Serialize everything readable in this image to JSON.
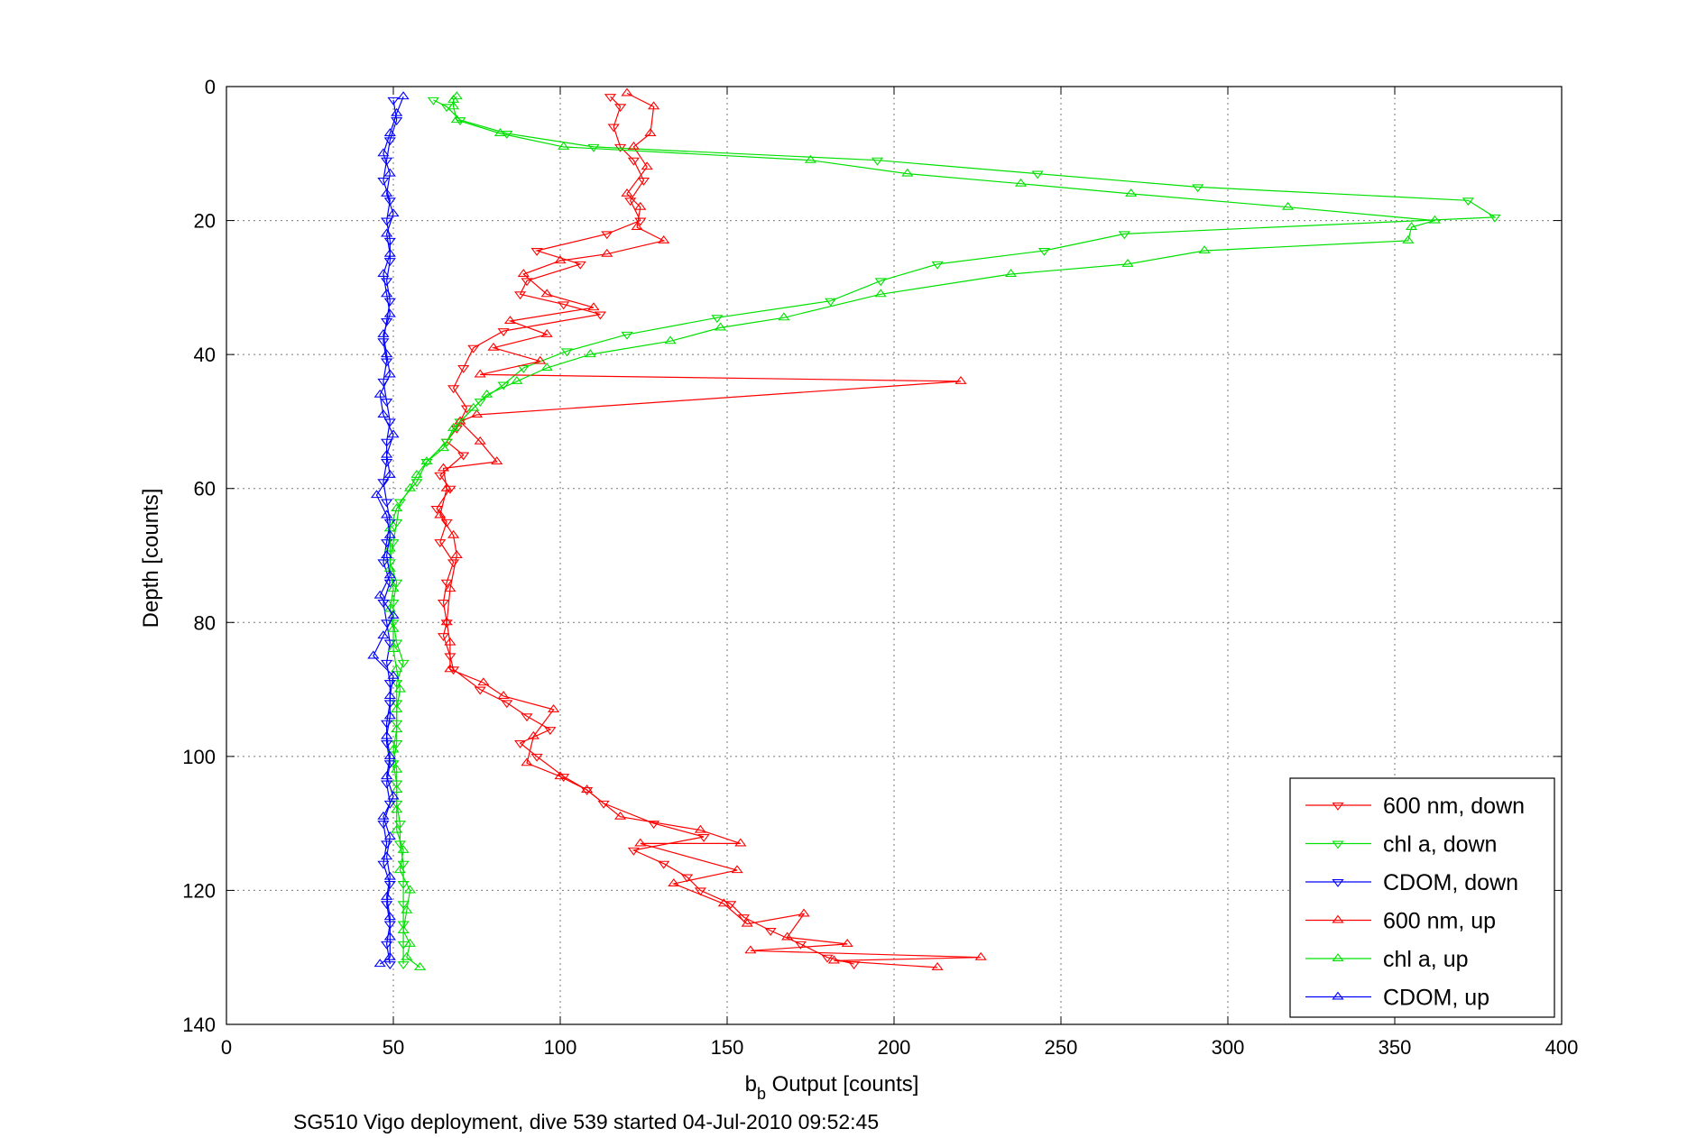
{
  "chart_data": {
    "type": "line",
    "title": "",
    "xlabel_main": "b",
    "xlabel_sub": "b",
    "xlabel_rest": " Output [counts]",
    "ylabel": "Depth [counts]",
    "footer": "SG510 Vigo deployment, dive 539 started 04-Jul-2010 09:52:45",
    "xlim": [
      0,
      400
    ],
    "ylim": [
      0,
      140
    ],
    "y_reversed": true,
    "xticks": [
      0,
      50,
      100,
      150,
      200,
      250,
      300,
      350,
      400
    ],
    "yticks": [
      0,
      20,
      40,
      60,
      80,
      100,
      120,
      140
    ],
    "xtick_labels": [
      "0",
      "50",
      "100",
      "150",
      "200",
      "250",
      "300",
      "350",
      "400"
    ],
    "ytick_labels": [
      "0",
      "20",
      "40",
      "60",
      "80",
      "100",
      "120",
      "140"
    ],
    "grid": true,
    "legend_position": "bottom-right",
    "series": [
      {
        "name": "600 nm, down",
        "color": "#ff0000",
        "marker": "triangle-down",
        "points": [
          [
            115,
            1.5
          ],
          [
            118,
            3
          ],
          [
            116,
            6
          ],
          [
            118,
            9
          ],
          [
            122,
            11
          ],
          [
            125,
            14
          ],
          [
            121,
            17
          ],
          [
            124,
            20
          ],
          [
            114,
            22
          ],
          [
            93,
            24.5
          ],
          [
            106,
            26.5
          ],
          [
            90,
            29
          ],
          [
            88,
            31
          ],
          [
            101,
            32.5
          ],
          [
            112,
            34
          ],
          [
            83,
            36.5
          ],
          [
            74,
            39
          ],
          [
            71,
            42
          ],
          [
            68,
            45
          ],
          [
            72,
            48
          ],
          [
            69,
            51
          ],
          [
            66,
            53
          ],
          [
            71,
            55
          ],
          [
            64,
            58
          ],
          [
            67,
            60
          ],
          [
            63,
            63
          ],
          [
            66,
            65
          ],
          [
            64,
            68
          ],
          [
            68,
            71
          ],
          [
            66,
            74
          ],
          [
            65,
            77
          ],
          [
            66,
            80
          ],
          [
            65,
            82
          ],
          [
            67,
            85
          ],
          [
            68,
            87
          ],
          [
            76,
            90
          ],
          [
            84,
            92
          ],
          [
            90,
            94
          ],
          [
            97,
            96
          ],
          [
            88,
            98
          ],
          [
            93,
            100
          ],
          [
            101,
            103
          ],
          [
            108,
            105
          ],
          [
            113,
            107
          ],
          [
            128,
            110
          ],
          [
            143,
            112
          ],
          [
            122,
            114
          ],
          [
            131,
            116
          ],
          [
            138,
            118
          ],
          [
            142,
            120
          ],
          [
            151,
            122
          ],
          [
            155,
            124
          ],
          [
            163,
            126
          ],
          [
            172,
            128
          ],
          [
            180,
            130
          ],
          [
            188,
            131
          ]
        ]
      },
      {
        "name": "chl a, down",
        "color": "#00e000",
        "marker": "triangle-down",
        "points": [
          [
            62,
            2
          ],
          [
            66,
            3
          ],
          [
            70,
            5
          ],
          [
            84,
            7
          ],
          [
            110,
            9
          ],
          [
            195,
            11
          ],
          [
            243,
            13
          ],
          [
            291,
            15
          ],
          [
            372,
            17
          ],
          [
            380,
            19.5
          ],
          [
            269,
            22
          ],
          [
            245,
            24.5
          ],
          [
            213,
            26.5
          ],
          [
            196,
            29
          ],
          [
            181,
            32
          ],
          [
            147,
            34.5
          ],
          [
            120,
            37
          ],
          [
            102,
            39.5
          ],
          [
            89,
            42
          ],
          [
            83,
            44.5
          ],
          [
            76,
            47
          ],
          [
            70,
            50
          ],
          [
            66,
            53
          ],
          [
            60,
            56
          ],
          [
            57,
            59
          ],
          [
            52,
            62
          ],
          [
            51,
            65
          ],
          [
            50,
            68
          ],
          [
            49,
            71
          ],
          [
            51,
            74
          ],
          [
            50,
            77
          ],
          [
            50,
            80
          ],
          [
            51,
            83
          ],
          [
            53,
            86
          ],
          [
            51,
            89
          ],
          [
            51,
            92
          ],
          [
            51,
            95
          ],
          [
            51,
            98
          ],
          [
            50,
            101
          ],
          [
            51,
            104
          ],
          [
            51,
            107
          ],
          [
            52,
            110
          ],
          [
            52,
            113
          ],
          [
            53,
            116
          ],
          [
            53,
            119
          ],
          [
            53,
            122
          ],
          [
            53,
            125
          ],
          [
            53,
            128
          ],
          [
            53,
            131
          ]
        ]
      },
      {
        "name": "CDOM, down",
        "color": "#0000ff",
        "marker": "triangle-down",
        "points": [
          [
            50,
            2
          ],
          [
            51,
            5
          ],
          [
            49,
            8
          ],
          [
            48,
            11
          ],
          [
            47,
            14
          ],
          [
            49,
            17
          ],
          [
            48,
            20
          ],
          [
            49,
            23
          ],
          [
            49,
            26
          ],
          [
            48,
            29
          ],
          [
            49,
            32
          ],
          [
            48,
            35
          ],
          [
            47,
            38
          ],
          [
            48,
            41
          ],
          [
            47,
            44
          ],
          [
            48,
            47
          ],
          [
            49,
            50
          ],
          [
            48,
            53
          ],
          [
            48,
            56
          ],
          [
            47,
            59
          ],
          [
            48,
            62
          ],
          [
            49,
            65
          ],
          [
            48,
            68
          ],
          [
            47,
            71
          ],
          [
            49,
            74
          ],
          [
            47,
            77
          ],
          [
            48,
            80
          ],
          [
            49,
            83
          ],
          [
            48,
            86
          ],
          [
            49,
            89
          ],
          [
            49,
            92
          ],
          [
            48,
            95
          ],
          [
            48,
            98
          ],
          [
            49,
            101
          ],
          [
            48,
            104
          ],
          [
            49,
            107
          ],
          [
            47,
            110
          ],
          [
            48,
            113
          ],
          [
            47,
            116
          ],
          [
            49,
            119
          ],
          [
            48,
            122
          ],
          [
            49,
            125
          ],
          [
            48,
            128
          ],
          [
            49,
            131
          ]
        ]
      },
      {
        "name": "600 nm, up",
        "color": "#ff0000",
        "marker": "triangle-up",
        "points": [
          [
            213,
            131.5
          ],
          [
            182,
            130.5
          ],
          [
            226,
            130
          ],
          [
            157,
            129
          ],
          [
            186,
            128
          ],
          [
            168,
            127
          ],
          [
            173,
            123.5
          ],
          [
            156,
            125
          ],
          [
            149,
            122
          ],
          [
            134,
            119
          ],
          [
            153,
            117
          ],
          [
            124,
            113
          ],
          [
            154,
            113
          ],
          [
            142,
            111
          ],
          [
            118,
            109
          ],
          [
            108,
            105
          ],
          [
            100,
            103
          ],
          [
            90,
            101
          ],
          [
            92,
            97
          ],
          [
            98,
            93
          ],
          [
            83,
            91
          ],
          [
            77,
            89
          ],
          [
            67,
            87
          ],
          [
            67,
            83
          ],
          [
            66,
            80
          ],
          [
            67,
            75
          ],
          [
            69,
            70
          ],
          [
            68,
            67
          ],
          [
            64,
            64
          ],
          [
            66,
            60
          ],
          [
            65,
            57
          ],
          [
            81,
            56
          ],
          [
            76,
            53
          ],
          [
            70,
            50
          ],
          [
            75,
            49
          ],
          [
            220,
            44
          ],
          [
            76,
            43
          ],
          [
            94,
            41
          ],
          [
            80,
            39
          ],
          [
            96,
            37
          ],
          [
            85,
            35
          ],
          [
            110,
            33
          ],
          [
            96,
            31
          ],
          [
            89,
            28
          ],
          [
            100,
            26
          ],
          [
            114,
            25
          ],
          [
            131,
            23
          ],
          [
            123,
            21
          ],
          [
            124,
            18
          ],
          [
            120,
            16
          ],
          [
            126,
            12
          ],
          [
            122,
            9
          ],
          [
            127,
            7
          ],
          [
            128,
            3
          ],
          [
            120,
            1
          ]
        ]
      },
      {
        "name": "chl a, up",
        "color": "#00e000",
        "marker": "triangle-up",
        "points": [
          [
            58,
            131.5
          ],
          [
            54,
            130
          ],
          [
            55,
            128
          ],
          [
            53,
            126
          ],
          [
            54,
            123
          ],
          [
            55,
            120
          ],
          [
            52,
            117
          ],
          [
            53,
            114
          ],
          [
            51,
            111
          ],
          [
            51,
            108
          ],
          [
            51,
            105
          ],
          [
            51,
            102
          ],
          [
            50,
            99
          ],
          [
            51,
            96
          ],
          [
            51,
            93
          ],
          [
            52,
            90
          ],
          [
            51,
            87
          ],
          [
            50,
            84
          ],
          [
            50,
            81
          ],
          [
            49,
            78
          ],
          [
            50,
            75
          ],
          [
            49,
            72
          ],
          [
            49,
            69
          ],
          [
            49,
            66
          ],
          [
            51,
            63
          ],
          [
            55,
            60
          ],
          [
            57,
            58
          ],
          [
            60,
            56
          ],
          [
            65,
            54
          ],
          [
            68,
            51
          ],
          [
            74,
            48
          ],
          [
            78,
            46
          ],
          [
            87,
            44
          ],
          [
            96,
            42
          ],
          [
            109,
            40
          ],
          [
            133,
            38
          ],
          [
            148,
            36
          ],
          [
            167,
            34.5
          ],
          [
            196,
            31
          ],
          [
            235,
            28
          ],
          [
            270,
            26.5
          ],
          [
            293,
            24.5
          ],
          [
            354,
            23
          ],
          [
            355,
            21
          ],
          [
            362,
            20
          ],
          [
            318,
            18
          ],
          [
            271,
            16
          ],
          [
            238,
            14.5
          ],
          [
            204,
            13
          ],
          [
            175,
            11
          ],
          [
            101,
            9
          ],
          [
            82,
            7
          ],
          [
            69,
            5
          ],
          [
            68,
            3
          ],
          [
            68,
            2
          ],
          [
            69,
            1.5
          ]
        ]
      },
      {
        "name": "CDOM, up",
        "color": "#0000ff",
        "marker": "triangle-up",
        "points": [
          [
            46,
            131
          ],
          [
            49,
            130
          ],
          [
            49,
            127
          ],
          [
            49,
            124
          ],
          [
            48,
            121
          ],
          [
            49,
            118
          ],
          [
            48,
            115
          ],
          [
            49,
            112
          ],
          [
            47,
            109
          ],
          [
            50,
            106
          ],
          [
            48,
            103
          ],
          [
            49,
            100
          ],
          [
            48,
            97
          ],
          [
            49,
            94
          ],
          [
            49,
            91
          ],
          [
            50,
            88
          ],
          [
            44,
            85
          ],
          [
            47,
            82
          ],
          [
            50,
            79
          ],
          [
            46,
            76
          ],
          [
            49,
            73
          ],
          [
            48,
            70
          ],
          [
            49,
            67
          ],
          [
            48,
            64
          ],
          [
            45,
            61
          ],
          [
            49,
            58
          ],
          [
            48,
            55
          ],
          [
            50,
            52
          ],
          [
            47,
            49
          ],
          [
            46,
            46
          ],
          [
            49,
            43
          ],
          [
            48,
            40
          ],
          [
            47,
            37
          ],
          [
            49,
            34
          ],
          [
            48,
            31
          ],
          [
            47,
            28
          ],
          [
            49,
            25
          ],
          [
            48,
            22
          ],
          [
            50,
            19
          ],
          [
            48,
            16
          ],
          [
            49,
            13
          ],
          [
            47,
            10
          ],
          [
            49,
            7
          ],
          [
            51,
            4
          ],
          [
            53,
            1.5
          ]
        ]
      }
    ]
  }
}
